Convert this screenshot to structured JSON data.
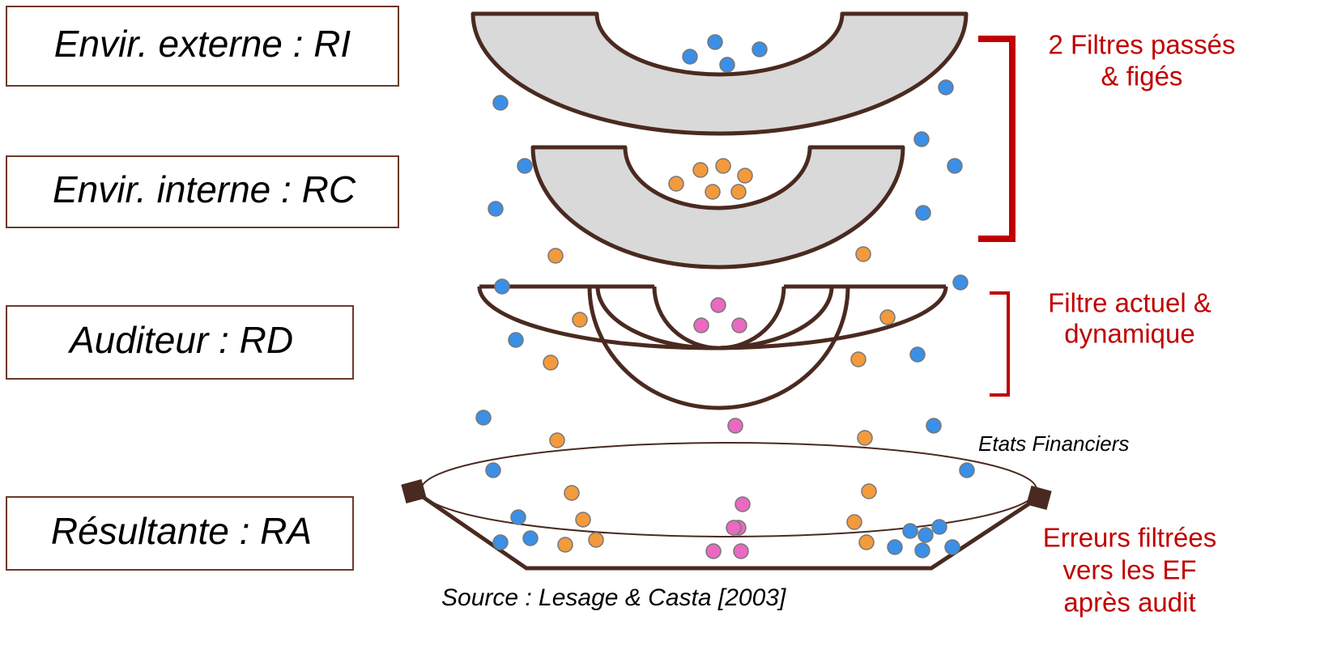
{
  "boxes": [
    "Envir. externe : RI",
    "Envir.  interne : RC",
    "Auditeur : RD",
    "Résultante : RA"
  ],
  "annotations": {
    "past_filters": [
      "2 Filtres passés",
      "& figés"
    ],
    "current_filter": [
      "Filtre actuel &",
      "dynamique"
    ],
    "result": [
      "Erreurs filtrées",
      "vers les EF",
      "après audit"
    ]
  },
  "financial_statements": "Etats Financiers",
  "source": "Source : Lesage & Casta [2003]"
}
